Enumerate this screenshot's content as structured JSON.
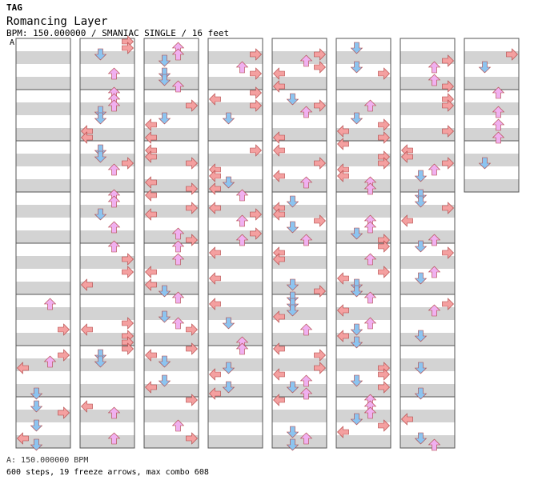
{
  "header": {
    "tag": "TAG",
    "title": "Romancing Layer",
    "meta": "BPM: 150.000000 / SMANIAC SINGLE / 16 feet",
    "marker": "A"
  },
  "footer": {
    "bpm": "A: 150.000000 BPM",
    "stats": "600 steps, 19 freeze arrows, max combo 608"
  },
  "colors": {
    "stripe": "#d3d3d3",
    "border": "#555555",
    "left_arrow": "#f4a0a0",
    "down_arrow": "#8cc4f0",
    "up_arrow": "#f0b0f0",
    "right_arrow": "#f4a0a0",
    "freeze": "#b8f0b8"
  },
  "chart": {
    "columns": 8,
    "measures_per_column": 8,
    "lanes": [
      "left",
      "down",
      "up",
      "right"
    ]
  }
}
